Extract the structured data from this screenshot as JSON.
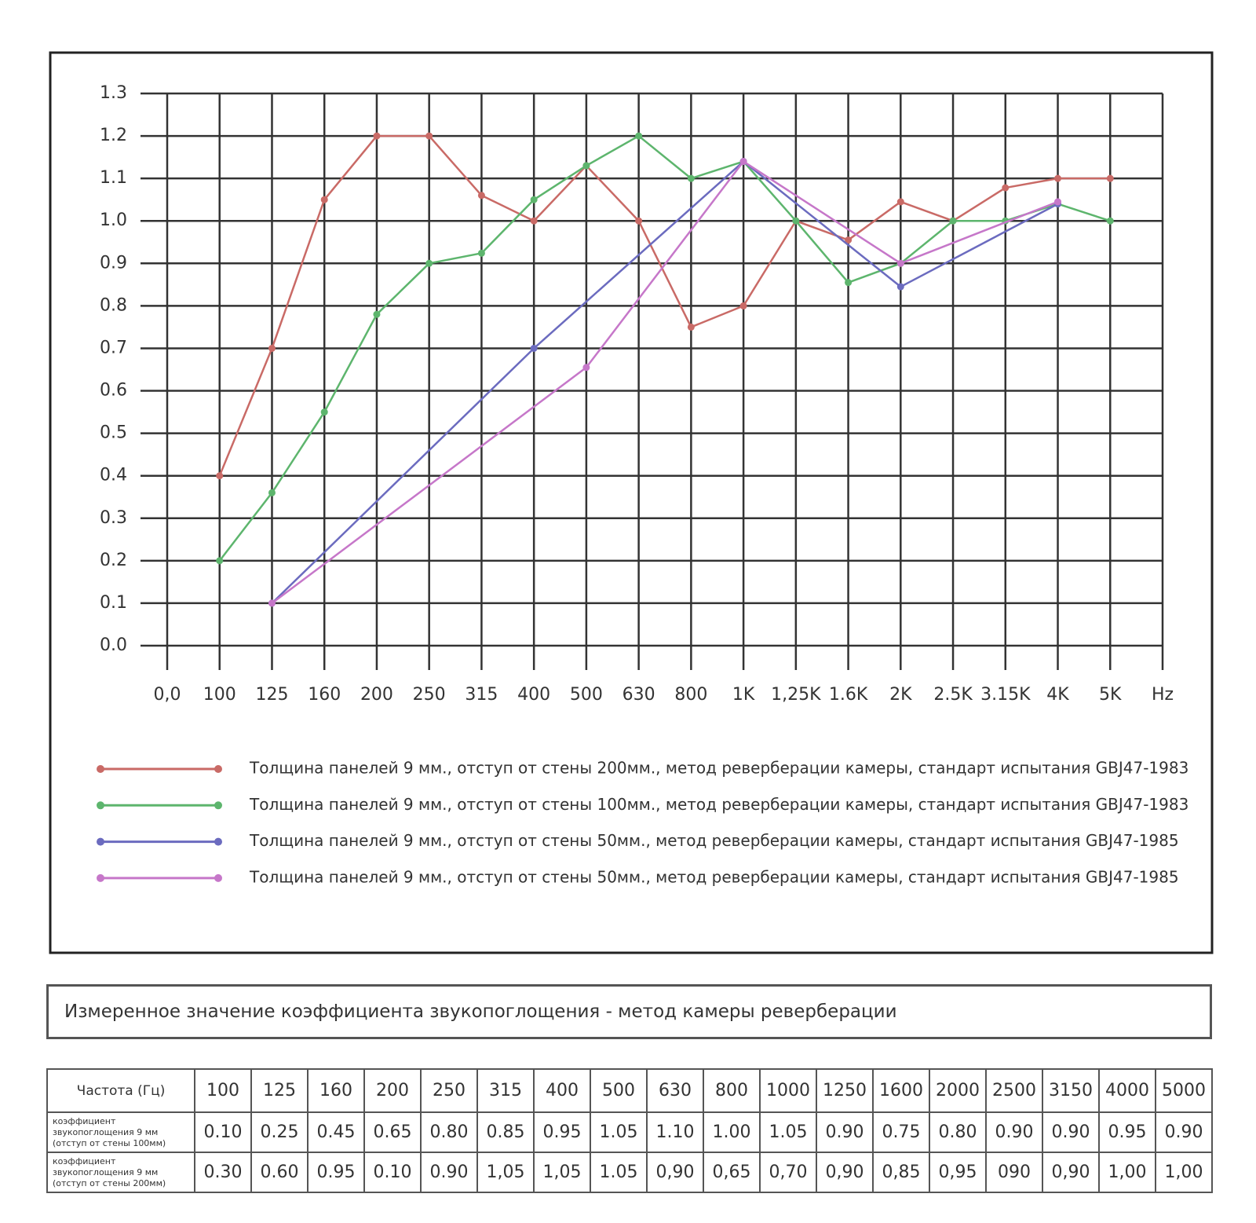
{
  "chart_data": {
    "type": "line",
    "categories": [
      "0,0",
      "100",
      "125",
      "160",
      "200",
      "250",
      "315",
      "400",
      "500",
      "630",
      "800",
      "1K",
      "1,25K",
      "1.6K",
      "2K",
      "2.5K",
      "3.15K",
      "4K",
      "5K",
      "Hz"
    ],
    "ylim": [
      0,
      1.3
    ],
    "yticks": [
      {
        "value": 0,
        "label": "0.0"
      },
      0.1,
      0.2,
      0.3,
      0.4,
      0.5,
      0.6,
      0.7,
      0.8,
      0.9,
      {
        "value": 1,
        "label": "1.0"
      },
      1.1,
      1.2,
      1.3
    ],
    "grid": true,
    "series": [
      {
        "name": "Толщина панелей 9 мм., отступ от стены 200мм., метод реверберации камеры, стандарт испытания GBJ47-1983",
        "color": "#c96a66",
        "values": [
          null,
          0.4,
          0.7,
          1.05,
          1.2,
          1.2,
          1.06,
          1.0,
          1.13,
          1.0,
          0.75,
          0.8,
          1.0,
          0.955,
          1.045,
          1.0,
          1.078,
          1.1,
          1.1,
          null
        ]
      },
      {
        "name": "Толщина панелей 9 мм., отступ от стены 100мм., метод реверберации камеры, стандарт испытания GBJ47-1983",
        "color": "#5db56d",
        "values": [
          null,
          0.2,
          0.36,
          0.55,
          0.78,
          0.9,
          0.924,
          1.05,
          1.13,
          1.2,
          1.1,
          1.14,
          1.0,
          0.855,
          0.9,
          1.0,
          1.0,
          1.04,
          1.0,
          null
        ]
      },
      {
        "name": "Толщина панелей 9 мм., отступ от стены 50мм., метод реверберации камеры, стандарт испытания GBJ47-1985",
        "color": "#6b6bbf",
        "values": [
          null,
          null,
          0.1,
          null,
          null,
          null,
          null,
          0.7,
          null,
          null,
          null,
          1.14,
          null,
          null,
          0.845,
          null,
          null,
          1.04,
          null,
          null
        ]
      },
      {
        "name": "Толщина панелей 9 мм., отступ от стены 50мм., метод реверберации камеры, стандарт испытания GBJ47-1985",
        "color": "#c677c9",
        "values": [
          null,
          null,
          0.1,
          null,
          null,
          null,
          null,
          null,
          0.655,
          null,
          null,
          1.14,
          null,
          null,
          0.9,
          null,
          null,
          1.045,
          null,
          null
        ]
      }
    ]
  },
  "table": {
    "title": "Измеренное значение коэффициента звукопоглощения - метод камеры реверберации",
    "header": [
      "Частота (Гц)",
      "100",
      "125",
      "160",
      "200",
      "250",
      "315",
      "400",
      "500",
      "630",
      "800",
      "1000",
      "1250",
      "1600",
      "2000",
      "2500",
      "3150",
      "4000",
      "5000"
    ],
    "rows": [
      [
        "коэффициент звукопоглощения 9 мм (отступ от стены 100мм)",
        "0.10",
        "0.25",
        "0.45",
        "0.65",
        "0.80",
        "0.85",
        "0.95",
        "1.05",
        "1.10",
        "1.00",
        "1.05",
        "0.90",
        "0.75",
        "0.80",
        "0.90",
        "0.90",
        "0.95",
        "0.90"
      ],
      [
        "коэффициент звукопоглощения 9 мм (отступ от стены 200мм)",
        "0.30",
        "0.60",
        "0.95",
        "0.10",
        "0.90",
        "1,05",
        "1,05",
        "1.05",
        "0,90",
        "0,65",
        "0,70",
        "0,90",
        "0,85",
        "0,95",
        "090",
        "0,90",
        "1,00",
        "1,00"
      ]
    ]
  }
}
